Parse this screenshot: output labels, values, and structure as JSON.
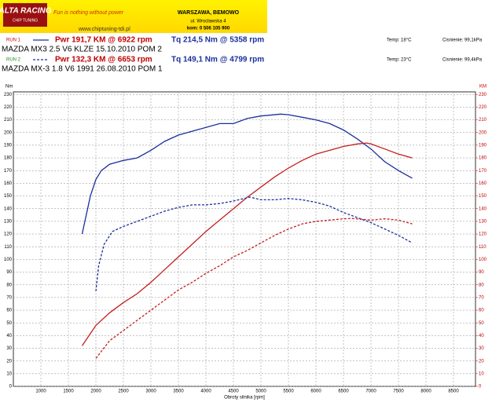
{
  "header": {
    "brand": "ALTA RACING",
    "brand_sub": "CHIP TUNING",
    "slogan": "Fun is nothing without power",
    "url": "www.chiptuning-tdi.pl",
    "city": "WARSZAWA, BEMOWO",
    "street": "ul. Wrocławska 4",
    "phone": "kom: 0 506 105 900"
  },
  "runs": [
    {
      "label": "RUN 1",
      "pwr": "Pwr 191,7 KM @ 6922 rpm",
      "tq": "Tq 214,5 Nm @ 5358 rpm",
      "temp": "Temp: 18°C",
      "pressure": "Cisnienie: 99,1kPa",
      "car": "MAZDA MX3  2.5 V6  KLZE  15.10.2010  POM 2",
      "color": "#c00000",
      "line_color": "#1a2f9c",
      "dash": false
    },
    {
      "label": "RUN 2",
      "pwr": "Pwr 132,3 KM @ 6653 rpm",
      "tq": "Tq 149,1 Nm @ 4799 rpm",
      "temp": "Temp: 23°C",
      "pressure": "Cisnienie: 99,4kPa",
      "car": "MAZDA MX-3  1.8 V6  1991  26.08.2010  POM 1",
      "color": "#1a8a1a",
      "line_color": "#1a2f9c",
      "dash": true
    }
  ],
  "chart_data": {
    "type": "line",
    "xlabel": "Obroty silnika [rpm]",
    "ylabel": "Nm",
    "y2label": "KM",
    "xlim": [
      500,
      8900
    ],
    "xticks": [
      1000,
      1500,
      2000,
      2500,
      3000,
      3500,
      4000,
      4500,
      5000,
      5500,
      6000,
      6500,
      7000,
      7500,
      8000,
      8500
    ],
    "ylim": [
      0,
      232
    ],
    "yticks": [
      0,
      10,
      20,
      30,
      40,
      50,
      60,
      70,
      80,
      90,
      100,
      110,
      120,
      130,
      140,
      150,
      160,
      170,
      180,
      190,
      200,
      210,
      220,
      230
    ],
    "y2lim": [
      0,
      232
    ],
    "y2ticks": [
      0,
      10,
      20,
      30,
      40,
      50,
      60,
      70,
      80,
      90,
      100,
      110,
      120,
      130,
      140,
      150,
      160,
      170,
      180,
      190,
      200,
      210,
      220,
      230
    ],
    "grid": true,
    "series": [
      {
        "color": "#1a2f9c",
        "dash": false,
        "x": [
          1750,
          1900,
          2000,
          2100,
          2250,
          2500,
          2750,
          3000,
          3250,
          3500,
          3750,
          4000,
          4250,
          4500,
          4750,
          5000,
          5358,
          5500,
          5750,
          6000,
          6250,
          6500,
          6750,
          7000,
          7250,
          7500,
          7750
        ],
        "values": [
          120,
          150,
          163,
          170,
          175,
          178,
          180,
          186,
          193,
          198,
          201,
          204,
          207,
          207,
          211,
          213,
          214.5,
          214,
          212,
          210,
          207,
          202,
          195,
          187,
          177,
          170,
          164
        ]
      },
      {
        "color": "#c41e1e",
        "dash": false,
        "axis": "y2",
        "x": [
          1750,
          2000,
          2250,
          2500,
          2750,
          3000,
          3250,
          3500,
          3750,
          4000,
          4250,
          4500,
          4750,
          5000,
          5250,
          5500,
          5750,
          6000,
          6250,
          6500,
          6750,
          6922,
          7000,
          7250,
          7500,
          7750
        ],
        "values": [
          32,
          48,
          58,
          66,
          73,
          82,
          92,
          102,
          112,
          122,
          131,
          140,
          149,
          157,
          165,
          172,
          178,
          183,
          186,
          189,
          191,
          191.7,
          191,
          187,
          183,
          180
        ]
      },
      {
        "color": "#1a2f9c",
        "dash": true,
        "x": [
          2000,
          2050,
          2150,
          2300,
          2500,
          2750,
          3000,
          3250,
          3500,
          3750,
          4000,
          4250,
          4500,
          4799,
          5000,
          5250,
          5500,
          5750,
          6000,
          6250,
          6500,
          6750,
          7000,
          7250,
          7500,
          7750
        ],
        "values": [
          75,
          95,
          112,
          122,
          126,
          130,
          134,
          138,
          141,
          143,
          143,
          144,
          146,
          149.1,
          147,
          147,
          148,
          147,
          145,
          142,
          137,
          133,
          129,
          124,
          119,
          113
        ]
      },
      {
        "color": "#c41e1e",
        "dash": true,
        "axis": "y2",
        "x": [
          2000,
          2250,
          2500,
          2750,
          3000,
          3250,
          3500,
          3750,
          4000,
          4250,
          4500,
          4750,
          5000,
          5250,
          5500,
          5750,
          6000,
          6250,
          6500,
          6653,
          7000,
          7250,
          7500,
          7750
        ],
        "values": [
          22,
          36,
          44,
          52,
          60,
          68,
          76,
          82,
          89,
          95,
          102,
          107,
          113,
          119,
          124,
          128,
          130,
          131,
          132,
          132.3,
          131,
          132,
          131,
          128
        ]
      }
    ]
  }
}
